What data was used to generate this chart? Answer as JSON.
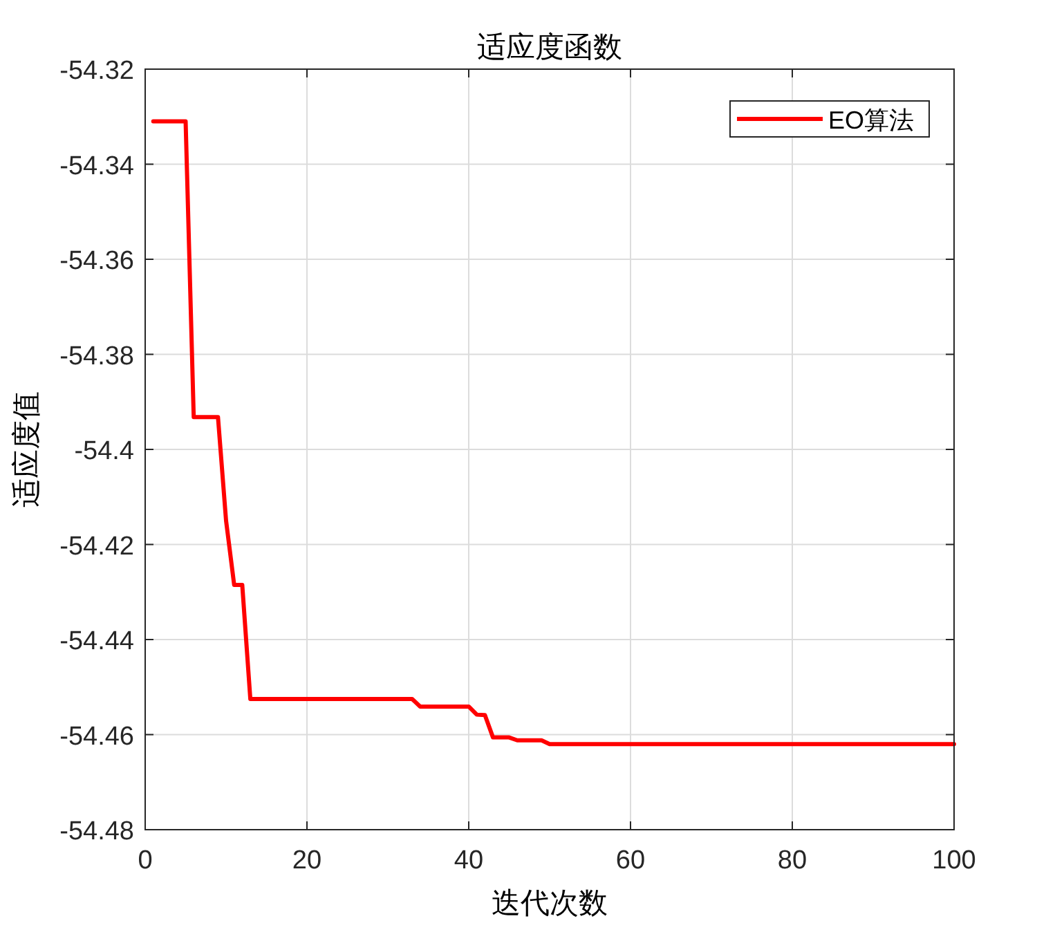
{
  "chart_data": {
    "type": "line",
    "title": "适应度函数",
    "xlabel": "迭代次数",
    "ylabel": "适应度值",
    "series": [
      {
        "name": "EO算法",
        "color": "#ff0000",
        "x": [
          1,
          5,
          6,
          9,
          10,
          11,
          12,
          13,
          33,
          34,
          40,
          41,
          42,
          43,
          45,
          46,
          49,
          50,
          100
        ],
        "values": [
          -54.331,
          -54.331,
          -54.3932,
          -54.3932,
          -54.415,
          -54.4285,
          -54.4285,
          -54.4525,
          -54.4525,
          -54.4541,
          -54.4541,
          -54.4558,
          -54.4559,
          -54.4606,
          -54.4606,
          -54.4612,
          -54.4612,
          -54.462,
          -54.462
        ]
      }
    ],
    "xlim": [
      0,
      100
    ],
    "xticks": [
      0,
      20,
      40,
      60,
      80,
      100
    ],
    "ylim": [
      -54.48,
      -54.32
    ],
    "yticks": [
      -54.48,
      -54.46,
      -54.44,
      -54.42,
      -54.4,
      -54.38,
      -54.36,
      -54.34,
      -54.32
    ],
    "grid": true,
    "legend": "top right",
    "marker": "none",
    "line_style": "solid"
  }
}
